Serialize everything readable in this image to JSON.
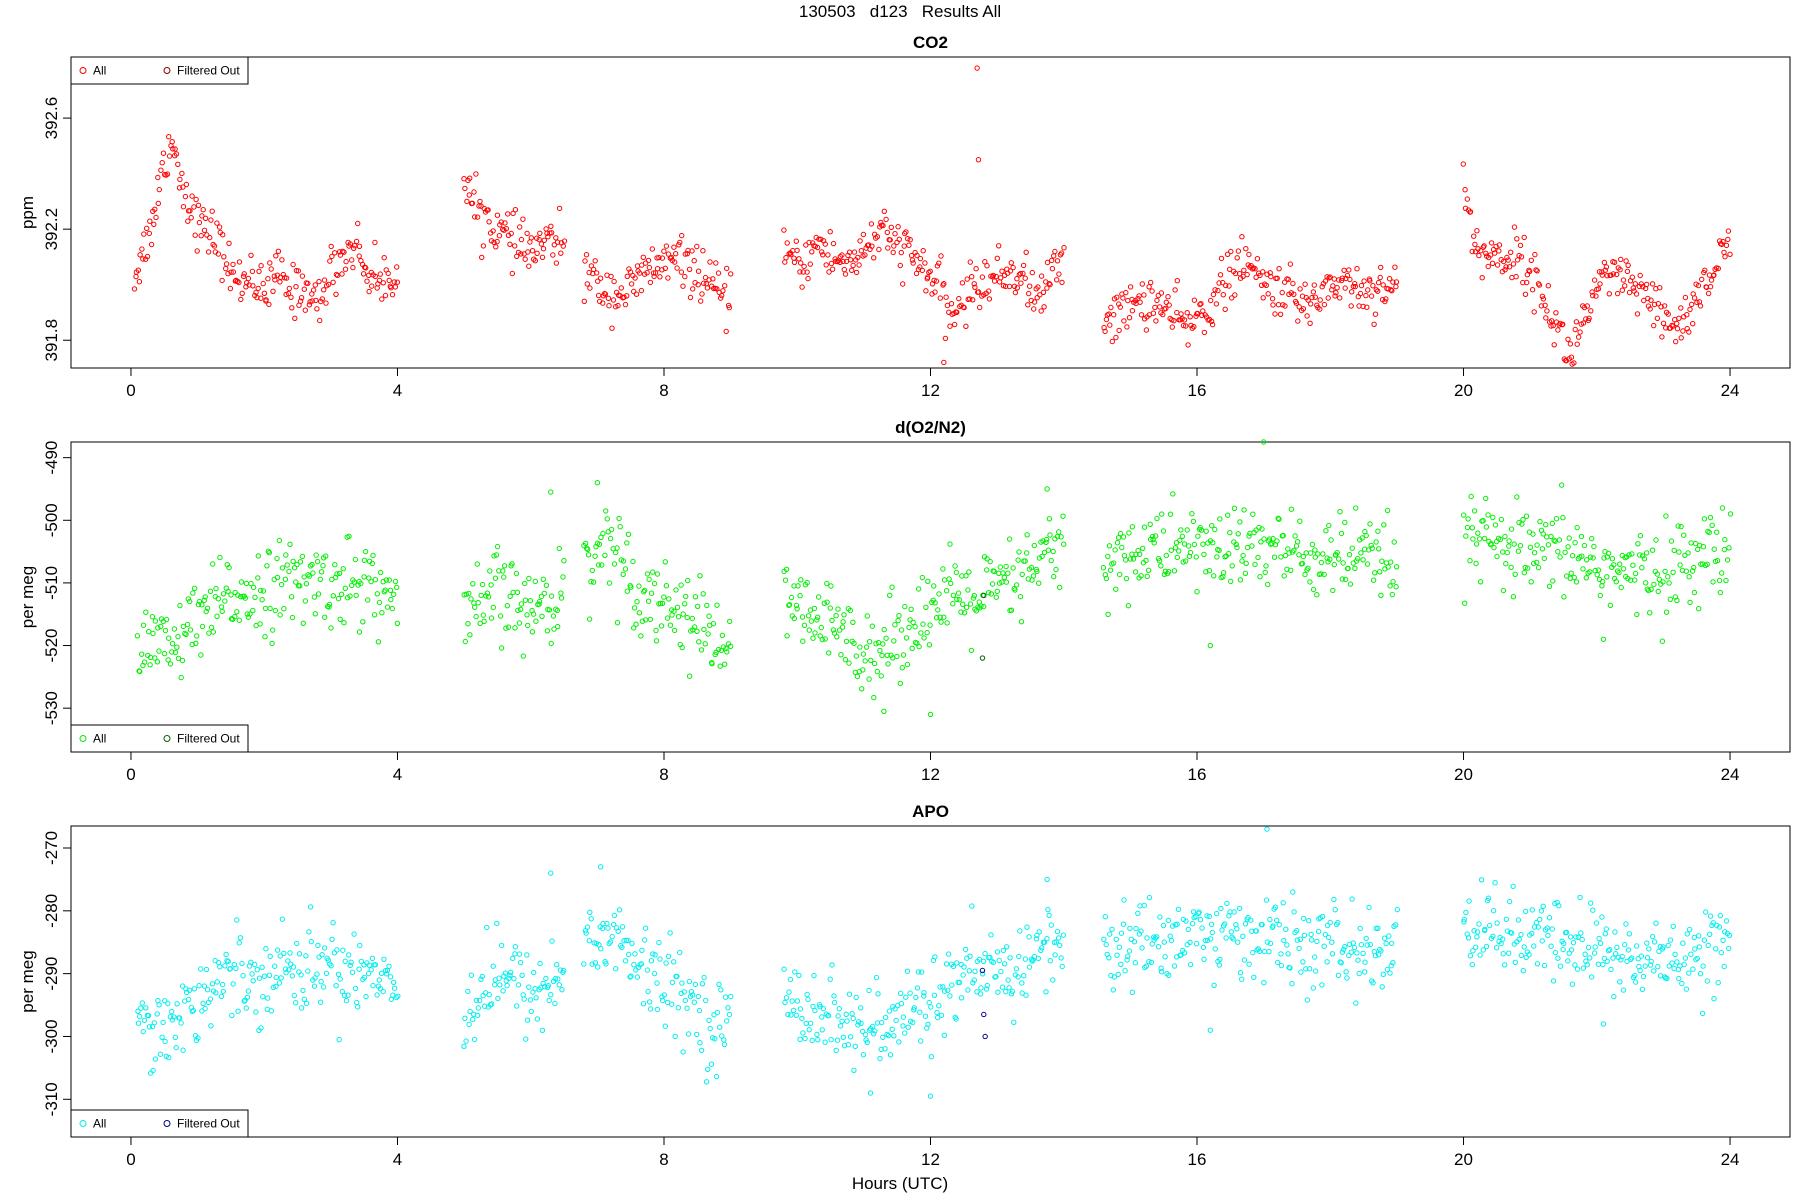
{
  "title": "130503   d123   Results All",
  "xlabel": "Hours (UTC)",
  "colors": {
    "co2": "#ff0000",
    "o2n2": "#00ee00",
    "apo": "#00eeee",
    "filtered_co2": "#8b0000",
    "filtered_o2n2": "#006400",
    "filtered_apo": "#00008b"
  },
  "chart_data": [
    {
      "type": "scatter",
      "title": "CO2",
      "ylabel": "ppm",
      "xlim": [
        -0.9,
        24.9
      ],
      "ylim": [
        391.7,
        392.82
      ],
      "xticks": [
        0,
        4,
        8,
        12,
        16,
        20,
        24
      ],
      "yticks": [
        391.8,
        392.2,
        392.6
      ],
      "ytick_labels": [
        "391.8",
        "392.2",
        "392.6"
      ],
      "legend": [
        "All",
        "Filtered Out"
      ],
      "legend_position": "top-left",
      "color_key": "co2",
      "filtered_color_key": "filtered_co2",
      "segments": [
        {
          "x": [
            0.05,
            0.3,
            0.5,
            0.62,
            0.75,
            0.9,
            1.05,
            1.25,
            1.4,
            1.6,
            1.8,
            2.0,
            2.2,
            2.4,
            2.6,
            2.8,
            3.0,
            3.2,
            3.35,
            3.55,
            3.75,
            4.0
          ],
          "y": [
            392.03,
            392.2,
            392.45,
            392.52,
            392.38,
            392.28,
            392.2,
            392.18,
            392.1,
            392.0,
            392.05,
            391.95,
            392.05,
            391.97,
            392.0,
            391.92,
            392.05,
            392.1,
            392.15,
            392.05,
            392.0,
            392.06
          ]
        },
        {
          "x": [
            5.0,
            5.2,
            5.5,
            5.75,
            6.0,
            6.25,
            6.5
          ],
          "y": [
            392.35,
            392.27,
            392.2,
            392.15,
            392.12,
            392.15,
            392.15
          ]
        },
        {
          "x": [
            6.8,
            7.0,
            7.25,
            7.5,
            7.75,
            8.0,
            8.25,
            8.5,
            8.7,
            8.9,
            9.0
          ],
          "y": [
            392.05,
            392.0,
            391.97,
            391.98,
            392.05,
            392.08,
            392.08,
            392.05,
            392.0,
            391.93,
            391.98
          ]
        },
        {
          "x": [
            9.8,
            10.0,
            10.3,
            10.6,
            10.9,
            11.2,
            11.5,
            11.8,
            12.1,
            12.3,
            12.5,
            12.7,
            13.0,
            13.3,
            13.6,
            13.8,
            14.0
          ],
          "y": [
            392.15,
            392.05,
            392.15,
            392.08,
            392.1,
            392.18,
            392.15,
            392.08,
            392.0,
            391.88,
            391.95,
            392.0,
            392.03,
            392.05,
            391.95,
            392.02,
            392.1
          ]
        },
        {
          "x": [
            14.6,
            14.9,
            15.2,
            15.5,
            15.8,
            16.1,
            16.4,
            16.7,
            17.0,
            17.3,
            17.6,
            17.9,
            18.2,
            18.5,
            18.8,
            19.0
          ],
          "y": [
            391.88,
            391.9,
            391.95,
            391.92,
            391.85,
            391.9,
            392.0,
            392.08,
            392.0,
            391.98,
            391.92,
            391.98,
            392.02,
            391.97,
            392.0,
            392.0
          ]
        },
        {
          "x": [
            20.0,
            20.2,
            20.5,
            20.8,
            21.0,
            21.2,
            21.4,
            21.6,
            21.8,
            22.0,
            22.3,
            22.6,
            22.9,
            23.1,
            23.3,
            23.5,
            23.7,
            23.9,
            24.0
          ],
          "y": [
            392.35,
            392.12,
            392.1,
            392.1,
            392.05,
            391.95,
            391.85,
            391.74,
            391.88,
            391.98,
            392.03,
            391.98,
            391.9,
            391.85,
            391.87,
            391.95,
            392.03,
            392.12,
            392.09
          ]
        }
      ],
      "noise": 0.045,
      "outliers": [
        {
          "x": 12.7,
          "y": 392.78
        },
        {
          "x": 12.72,
          "y": 392.45
        },
        {
          "x": 12.2,
          "y": 391.72
        }
      ],
      "filtered_points": []
    },
    {
      "type": "scatter",
      "title": "d(O2/N2)",
      "ylabel": "per meg",
      "xlim": [
        -0.9,
        24.9
      ],
      "ylim": [
        -537,
        -487.5
      ],
      "xticks": [
        0,
        4,
        8,
        12,
        16,
        20,
        24
      ],
      "yticks": [
        -530,
        -520,
        -510,
        -500,
        -490
      ],
      "ytick_labels": [
        "-530",
        "-520",
        "-510",
        "-500",
        "-490"
      ],
      "legend": [
        "All",
        "Filtered Out"
      ],
      "legend_position": "bottom-left",
      "color_key": "o2n2",
      "filtered_color_key": "filtered_o2n2",
      "segments": [
        {
          "x": [
            0.1,
            0.5,
            1.0,
            1.5,
            2.0,
            2.5,
            3.0,
            3.5,
            4.0
          ],
          "y": [
            -517,
            -521,
            -517,
            -512,
            -511,
            -510,
            -510,
            -510,
            -513
          ]
        },
        {
          "x": [
            5.0,
            5.5,
            6.0,
            6.5
          ],
          "y": [
            -517,
            -511,
            -515,
            -511
          ]
        },
        {
          "x": [
            6.8,
            7.2,
            7.6,
            8.0,
            8.4,
            8.8,
            9.0
          ],
          "y": [
            -507,
            -503,
            -511,
            -513,
            -515,
            -520,
            -518
          ]
        },
        {
          "x": [
            9.8,
            10.3,
            10.8,
            11.3,
            11.8,
            12.3,
            12.8,
            13.3,
            13.8,
            14.0
          ],
          "y": [
            -514,
            -516,
            -519,
            -521,
            -515,
            -513,
            -512,
            -510,
            -505,
            -506
          ]
        },
        {
          "x": [
            14.6,
            15.2,
            15.8,
            16.4,
            17.0,
            17.6,
            18.2,
            18.8,
            19.0
          ],
          "y": [
            -507,
            -505,
            -504,
            -505,
            -504,
            -506,
            -506,
            -507,
            -507
          ]
        },
        {
          "x": [
            20.0,
            20.5,
            21.0,
            21.5,
            22.0,
            22.5,
            23.0,
            23.5,
            24.0
          ],
          "y": [
            -503,
            -504,
            -506,
            -505,
            -507,
            -509,
            -508,
            -506,
            -505
          ]
        }
      ],
      "noise": 3.4,
      "outliers": [
        {
          "x": 11.3,
          "y": -530.5
        },
        {
          "x": 12.0,
          "y": -531
        },
        {
          "x": 17.0,
          "y": -487.5
        },
        {
          "x": 7.0,
          "y": -494
        },
        {
          "x": 6.3,
          "y": -495.5
        },
        {
          "x": 13.75,
          "y": -495
        },
        {
          "x": 16.2,
          "y": -520
        },
        {
          "x": 22.1,
          "y": -519
        }
      ],
      "filtered_points": [
        {
          "x": 12.78,
          "y": -522
        },
        {
          "x": 12.8,
          "y": -512
        }
      ]
    },
    {
      "type": "scatter",
      "title": "APO",
      "ylabel": "per meg",
      "xlim": [
        -0.9,
        24.9
      ],
      "ylim": [
        -316,
        -266.5
      ],
      "xticks": [
        0,
        4,
        8,
        12,
        16,
        20,
        24
      ],
      "yticks": [
        -310,
        -300,
        -290,
        -280,
        -270
      ],
      "ytick_labels": [
        "-310",
        "-300",
        "-290",
        "-280",
        "-270"
      ],
      "legend": [
        "All",
        "Filtered Out"
      ],
      "legend_position": "bottom-left",
      "color_key": "apo",
      "filtered_color_key": "filtered_apo",
      "segments": [
        {
          "x": [
            0.1,
            0.5,
            1.0,
            1.5,
            2.0,
            2.5,
            3.0,
            3.5,
            4.0
          ],
          "y": [
            -295,
            -299,
            -294,
            -290,
            -290,
            -289,
            -289,
            -289,
            -292
          ]
        },
        {
          "x": [
            5.0,
            5.5,
            6.0,
            6.5
          ],
          "y": [
            -296,
            -290,
            -293,
            -290
          ]
        },
        {
          "x": [
            6.8,
            7.2,
            7.6,
            8.0,
            8.4,
            8.8,
            9.0
          ],
          "y": [
            -286,
            -283,
            -289,
            -292,
            -294,
            -299,
            -298
          ]
        },
        {
          "x": [
            9.8,
            10.3,
            10.8,
            11.3,
            11.8,
            12.3,
            12.8,
            13.3,
            13.8,
            14.0
          ],
          "y": [
            -293,
            -296,
            -298,
            -300,
            -295,
            -292,
            -291,
            -289,
            -285,
            -286
          ]
        },
        {
          "x": [
            14.6,
            15.2,
            15.8,
            16.4,
            17.0,
            17.6,
            18.2,
            18.8,
            19.0
          ],
          "y": [
            -287,
            -285,
            -284,
            -284,
            -284,
            -286,
            -286,
            -287,
            -287
          ]
        },
        {
          "x": [
            20.0,
            20.5,
            21.0,
            21.5,
            22.0,
            22.5,
            23.0,
            23.5,
            24.0
          ],
          "y": [
            -282,
            -283,
            -285,
            -285,
            -286,
            -288,
            -288,
            -286,
            -285
          ]
        }
      ],
      "noise": 3.4,
      "outliers": [
        {
          "x": 11.1,
          "y": -309
        },
        {
          "x": 12.0,
          "y": -309.5
        },
        {
          "x": 17.05,
          "y": -267
        },
        {
          "x": 7.05,
          "y": -273
        },
        {
          "x": 6.3,
          "y": -274
        },
        {
          "x": 13.75,
          "y": -275
        },
        {
          "x": 16.2,
          "y": -299
        },
        {
          "x": 22.1,
          "y": -298
        }
      ],
      "filtered_points": [
        {
          "x": 12.78,
          "y": -289.5
        },
        {
          "x": 12.8,
          "y": -296.5
        },
        {
          "x": 12.82,
          "y": -300
        }
      ]
    }
  ]
}
